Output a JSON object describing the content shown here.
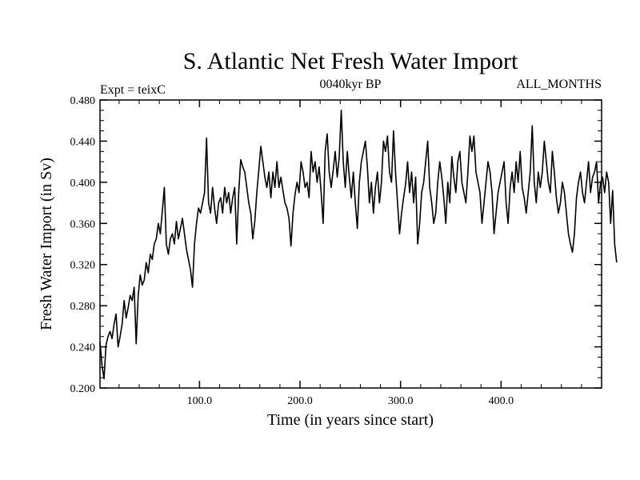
{
  "chart_data": {
    "type": "line",
    "title": "S. Atlantic Net Fresh Water Import",
    "subtitle_left": "Expt = teixC",
    "subtitle_center": "0040kyr BP",
    "subtitle_right": "ALL_MONTHS",
    "xlabel": "Time (in years since start)",
    "ylabel": "Fresh Water Import (in Sv)",
    "xlim": [
      1,
      500
    ],
    "ylim": [
      0.2,
      0.48
    ],
    "x_ticks": [
      100,
      200,
      300,
      400
    ],
    "x_tick_labels": [
      "100.0",
      "200.0",
      "300.0",
      "400.0"
    ],
    "y_ticks": [
      0.2,
      0.24,
      0.28,
      0.32,
      0.36,
      0.4,
      0.44,
      0.48
    ],
    "y_tick_labels": [
      "0.200",
      "0.240",
      "0.280",
      "0.320",
      "0.360",
      "0.400",
      "0.440",
      "0.480"
    ],
    "grid": false,
    "line_color": "#000000",
    "series": [
      {
        "x_start": 1,
        "x_step": 2,
        "values": [
          0.245,
          0.222,
          0.209,
          0.242,
          0.25,
          0.255,
          0.248,
          0.262,
          0.272,
          0.24,
          0.25,
          0.262,
          0.285,
          0.268,
          0.278,
          0.29,
          0.285,
          0.298,
          0.243,
          0.29,
          0.31,
          0.3,
          0.305,
          0.322,
          0.312,
          0.33,
          0.325,
          0.34,
          0.345,
          0.36,
          0.35,
          0.372,
          0.395,
          0.34,
          0.33,
          0.345,
          0.35,
          0.34,
          0.362,
          0.345,
          0.355,
          0.365,
          0.35,
          0.335,
          0.325,
          0.315,
          0.298,
          0.34,
          0.36,
          0.375,
          0.37,
          0.38,
          0.39,
          0.443,
          0.38,
          0.37,
          0.395,
          0.375,
          0.36,
          0.38,
          0.385,
          0.37,
          0.395,
          0.38,
          0.39,
          0.37,
          0.385,
          0.395,
          0.34,
          0.39,
          0.422,
          0.415,
          0.41,
          0.395,
          0.38,
          0.37,
          0.345,
          0.362,
          0.39,
          0.412,
          0.435,
          0.42,
          0.405,
          0.395,
          0.41,
          0.385,
          0.41,
          0.395,
          0.42,
          0.395,
          0.405,
          0.392,
          0.38,
          0.375,
          0.365,
          0.338,
          0.37,
          0.388,
          0.4,
          0.39,
          0.42,
          0.41,
          0.395,
          0.4,
          0.385,
          0.43,
          0.41,
          0.42,
          0.4,
          0.415,
          0.39,
          0.36,
          0.43,
          0.447,
          0.41,
          0.395,
          0.412,
          0.43,
          0.405,
          0.425,
          0.47,
          0.42,
          0.395,
          0.43,
          0.405,
          0.385,
          0.41,
          0.38,
          0.355,
          0.4,
          0.42,
          0.43,
          0.44,
          0.415,
          0.38,
          0.4,
          0.37,
          0.395,
          0.41,
          0.38,
          0.4,
          0.44,
          0.43,
          0.445,
          0.41,
          0.4,
          0.45,
          0.41,
          0.38,
          0.35,
          0.37,
          0.385,
          0.398,
          0.42,
          0.39,
          0.41,
          0.38,
          0.405,
          0.34,
          0.36,
          0.39,
          0.4,
          0.42,
          0.44,
          0.395,
          0.38,
          0.36,
          0.37,
          0.4,
          0.42,
          0.405,
          0.385,
          0.36,
          0.4,
          0.38,
          0.425,
          0.405,
          0.39,
          0.42,
          0.43,
          0.4,
          0.39,
          0.38,
          0.41,
          0.445,
          0.43,
          0.445,
          0.41,
          0.4,
          0.39,
          0.36,
          0.38,
          0.4,
          0.42,
          0.41,
          0.39,
          0.35,
          0.37,
          0.39,
          0.4,
          0.41,
          0.42,
          0.38,
          0.36,
          0.395,
          0.41,
          0.39,
          0.42,
          0.4,
          0.43,
          0.395,
          0.385,
          0.37,
          0.39,
          0.41,
          0.455,
          0.4,
          0.38,
          0.41,
          0.395,
          0.41,
          0.44,
          0.42,
          0.4,
          0.39,
          0.43,
          0.41,
          0.385,
          0.37,
          0.38,
          0.4,
          0.39,
          0.37,
          0.35,
          0.34,
          0.332,
          0.35,
          0.385,
          0.4,
          0.41,
          0.39,
          0.38,
          0.4,
          0.42,
          0.39,
          0.405,
          0.41,
          0.42,
          0.38,
          0.4,
          0.405,
          0.39,
          0.41,
          0.4,
          0.36,
          0.392,
          0.34,
          0.322
        ]
      }
    ]
  }
}
